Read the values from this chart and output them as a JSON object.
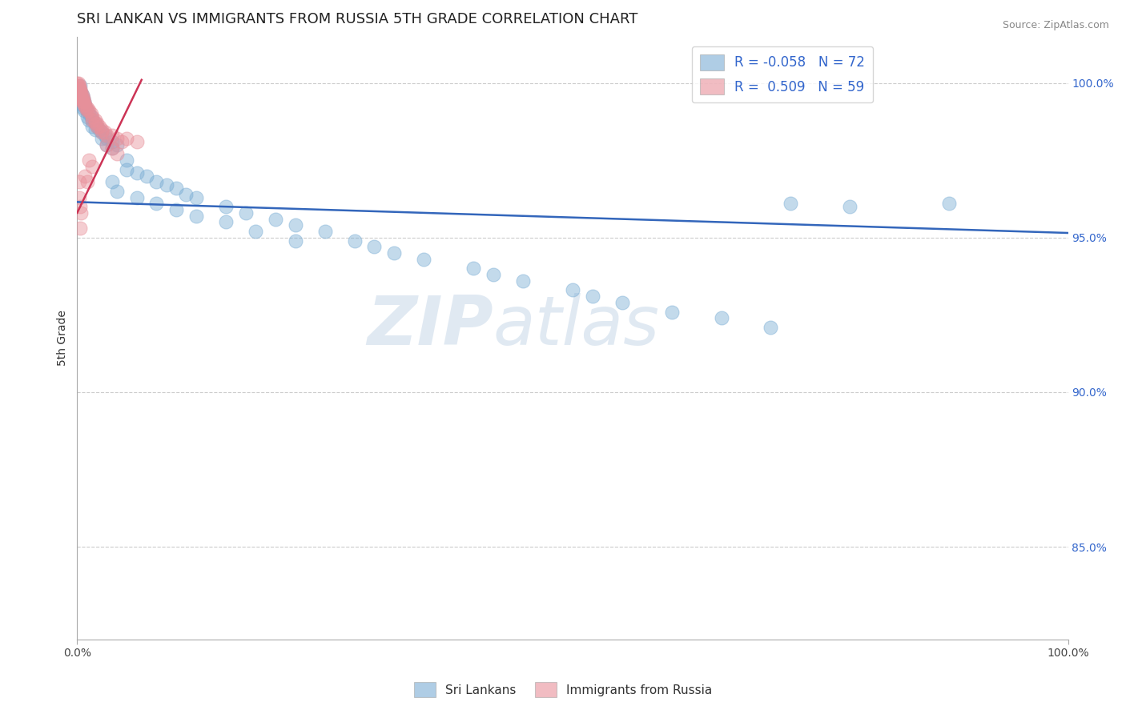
{
  "title": "SRI LANKAN VS IMMIGRANTS FROM RUSSIA 5TH GRADE CORRELATION CHART",
  "source_text": "Source: ZipAtlas.com",
  "ylabel": "5th Grade",
  "xlim": [
    0.0,
    1.0
  ],
  "ylim": [
    0.82,
    1.015
  ],
  "ytick_positions": [
    0.85,
    0.9,
    0.95,
    1.0
  ],
  "ytick_labels": [
    "85.0%",
    "90.0%",
    "95.0%",
    "100.0%"
  ],
  "grid_color": "#cccccc",
  "blue_color": "#7aadd4",
  "pink_color": "#e8909a",
  "blue_scatter": [
    [
      0.001,
      0.997
    ],
    [
      0.002,
      0.998
    ],
    [
      0.003,
      0.999
    ],
    [
      0.003,
      0.996
    ],
    [
      0.004,
      0.997
    ],
    [
      0.004,
      0.995
    ],
    [
      0.005,
      0.996
    ],
    [
      0.005,
      0.993
    ],
    [
      0.006,
      0.995
    ],
    [
      0.006,
      0.992
    ],
    [
      0.007,
      0.994
    ],
    [
      0.007,
      0.991
    ],
    [
      0.008,
      0.993
    ],
    [
      0.009,
      0.992
    ],
    [
      0.01,
      0.991
    ],
    [
      0.01,
      0.989
    ],
    [
      0.012,
      0.99
    ],
    [
      0.012,
      0.988
    ],
    [
      0.014,
      0.989
    ],
    [
      0.015,
      0.988
    ],
    [
      0.015,
      0.986
    ],
    [
      0.018,
      0.987
    ],
    [
      0.018,
      0.985
    ],
    [
      0.02,
      0.986
    ],
    [
      0.022,
      0.985
    ],
    [
      0.025,
      0.984
    ],
    [
      0.025,
      0.982
    ],
    [
      0.028,
      0.983
    ],
    [
      0.03,
      0.982
    ],
    [
      0.03,
      0.98
    ],
    [
      0.035,
      0.981
    ],
    [
      0.035,
      0.979
    ],
    [
      0.04,
      0.98
    ],
    [
      0.05,
      0.975
    ],
    [
      0.05,
      0.972
    ],
    [
      0.06,
      0.971
    ],
    [
      0.07,
      0.97
    ],
    [
      0.08,
      0.968
    ],
    [
      0.09,
      0.967
    ],
    [
      0.1,
      0.966
    ],
    [
      0.11,
      0.964
    ],
    [
      0.12,
      0.963
    ],
    [
      0.15,
      0.96
    ],
    [
      0.17,
      0.958
    ],
    [
      0.2,
      0.956
    ],
    [
      0.22,
      0.954
    ],
    [
      0.25,
      0.952
    ],
    [
      0.28,
      0.949
    ],
    [
      0.3,
      0.947
    ],
    [
      0.32,
      0.945
    ],
    [
      0.35,
      0.943
    ],
    [
      0.4,
      0.94
    ],
    [
      0.42,
      0.938
    ],
    [
      0.45,
      0.936
    ],
    [
      0.5,
      0.933
    ],
    [
      0.52,
      0.931
    ],
    [
      0.55,
      0.929
    ],
    [
      0.6,
      0.926
    ],
    [
      0.65,
      0.924
    ],
    [
      0.7,
      0.921
    ],
    [
      0.72,
      0.961
    ],
    [
      0.78,
      0.96
    ],
    [
      0.88,
      0.961
    ],
    [
      0.035,
      0.968
    ],
    [
      0.04,
      0.965
    ],
    [
      0.06,
      0.963
    ],
    [
      0.08,
      0.961
    ],
    [
      0.1,
      0.959
    ],
    [
      0.12,
      0.957
    ],
    [
      0.15,
      0.955
    ],
    [
      0.18,
      0.952
    ],
    [
      0.22,
      0.949
    ]
  ],
  "pink_scatter": [
    [
      0.0,
      1.0
    ],
    [
      0.0,
      0.999
    ],
    [
      0.0,
      0.998
    ],
    [
      0.001,
      1.0
    ],
    [
      0.001,
      0.999
    ],
    [
      0.001,
      0.998
    ],
    [
      0.001,
      0.997
    ],
    [
      0.002,
      0.999
    ],
    [
      0.002,
      0.998
    ],
    [
      0.002,
      0.997
    ],
    [
      0.002,
      0.996
    ],
    [
      0.003,
      0.998
    ],
    [
      0.003,
      0.997
    ],
    [
      0.003,
      0.996
    ],
    [
      0.003,
      0.995
    ],
    [
      0.004,
      0.997
    ],
    [
      0.004,
      0.996
    ],
    [
      0.004,
      0.995
    ],
    [
      0.005,
      0.996
    ],
    [
      0.005,
      0.995
    ],
    [
      0.005,
      0.994
    ],
    [
      0.006,
      0.995
    ],
    [
      0.006,
      0.994
    ],
    [
      0.007,
      0.994
    ],
    [
      0.007,
      0.993
    ],
    [
      0.008,
      0.993
    ],
    [
      0.009,
      0.992
    ],
    [
      0.01,
      0.992
    ],
    [
      0.01,
      0.991
    ],
    [
      0.012,
      0.991
    ],
    [
      0.014,
      0.99
    ],
    [
      0.015,
      0.989
    ],
    [
      0.015,
      0.988
    ],
    [
      0.018,
      0.988
    ],
    [
      0.018,
      0.987
    ],
    [
      0.02,
      0.987
    ],
    [
      0.02,
      0.986
    ],
    [
      0.022,
      0.986
    ],
    [
      0.025,
      0.985
    ],
    [
      0.025,
      0.984
    ],
    [
      0.028,
      0.984
    ],
    [
      0.03,
      0.983
    ],
    [
      0.035,
      0.983
    ],
    [
      0.04,
      0.982
    ],
    [
      0.045,
      0.981
    ],
    [
      0.03,
      0.98
    ],
    [
      0.035,
      0.979
    ],
    [
      0.04,
      0.977
    ],
    [
      0.012,
      0.975
    ],
    [
      0.015,
      0.973
    ],
    [
      0.002,
      0.968
    ],
    [
      0.05,
      0.982
    ],
    [
      0.06,
      0.981
    ],
    [
      0.008,
      0.97
    ],
    [
      0.01,
      0.968
    ],
    [
      0.002,
      0.963
    ],
    [
      0.003,
      0.96
    ],
    [
      0.004,
      0.958
    ],
    [
      0.003,
      0.953
    ]
  ],
  "blue_R": -0.058,
  "blue_N": 72,
  "pink_R": 0.509,
  "pink_N": 59,
  "legend_label_blue": "Sri Lankans",
  "legend_label_pink": "Immigrants from Russia",
  "blue_line": [
    0.0,
    1.0,
    0.9615,
    0.9515
  ],
  "pink_line": [
    0.0,
    0.065,
    0.958,
    1.001
  ],
  "watermark_zip": "ZIP",
  "watermark_atlas": "atlas",
  "title_fontsize": 13
}
